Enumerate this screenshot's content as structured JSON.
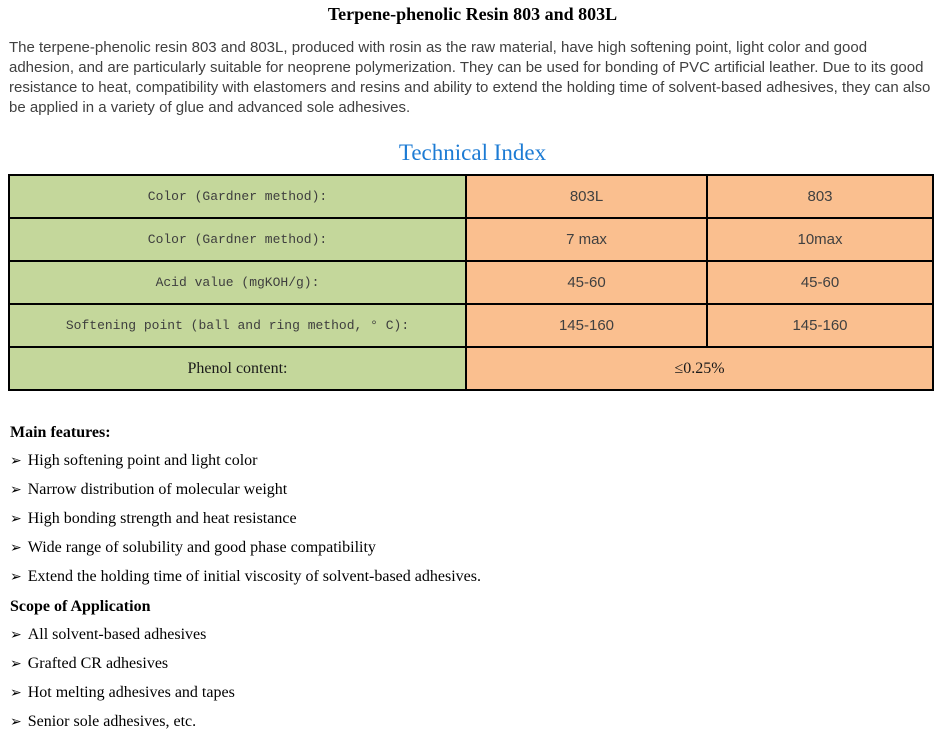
{
  "colors": {
    "accent-blue": "#1c7bd4",
    "label-bg": "#c4d79b",
    "value-bg": "#fabf8f",
    "body-text": "#404040"
  },
  "page": {
    "title": "Terpene-phenolic Resin 803 and 803L",
    "intro": "The terpene-phenolic resin 803 and 803L, produced with rosin as the raw material, have high softening point, light color and good adhesion, and are particularly suitable for neoprene polymerization. They can be used for bonding of PVC artificial leather. Due to its good resistance to heat, compatibility with elastomers and resins and ability to extend the holding time of solvent-based adhesives, they can also be applied in a variety of glue and advanced sole adhesives."
  },
  "technical_index": {
    "heading": "Technical Index",
    "table": {
      "rows": [
        {
          "label": "Color (Gardner method):",
          "values": [
            "803L",
            "803"
          ]
        },
        {
          "label": "Color (Gardner method):",
          "values": [
            "7 max",
            "10max"
          ]
        },
        {
          "label": "Acid value (mgKOH/g):",
          "values": [
            "45-60",
            "45-60"
          ]
        },
        {
          "label": "Softening point (ball and ring method, ° C):",
          "values": [
            "145-160",
            "145-160"
          ]
        },
        {
          "label": "Phenol content:",
          "values": [
            "≤0.25%"
          ]
        }
      ]
    }
  },
  "features": {
    "heading": "Main features:",
    "bullet": "➢",
    "items": [
      "High softening point and light color",
      "Narrow distribution of molecular weight",
      "High bonding strength and heat resistance",
      "Wide range of solubility and good phase compatibility",
      "Extend the holding time of initial viscosity of solvent-based adhesives."
    ]
  },
  "applications": {
    "heading": "Scope of Application",
    "bullet": "➢",
    "items": [
      "All solvent-based adhesives",
      "Grafted CR adhesives",
      "Hot melting adhesives and tapes",
      "Senior sole adhesives, etc."
    ]
  }
}
